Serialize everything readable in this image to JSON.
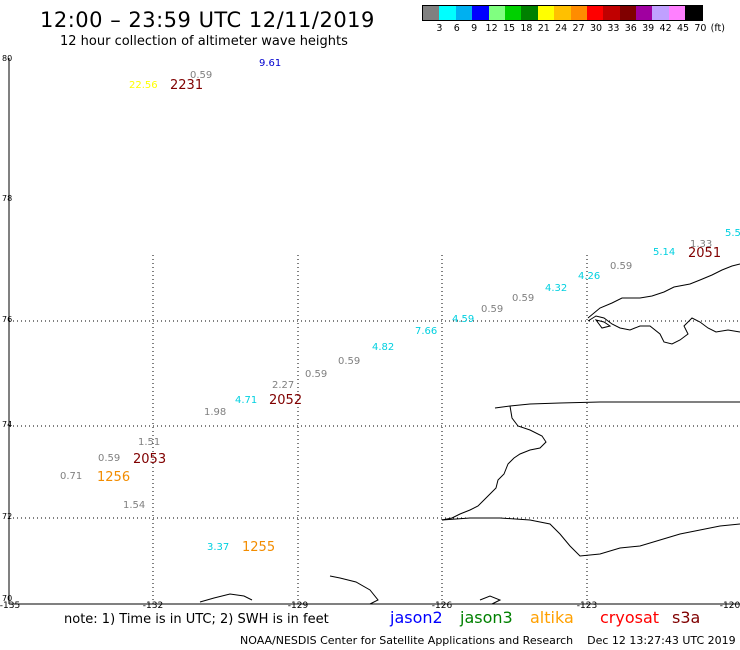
{
  "header": {
    "title": "12:00 – 23:59 UTC 12/11/2019",
    "subtitle": "12 hour collection of altimeter wave heights"
  },
  "legend": {
    "colors": [
      "#808080",
      "#00ffff",
      "#00b0f0",
      "#0000ff",
      "#80ff80",
      "#00d000",
      "#008000",
      "#ffff00",
      "#ffc000",
      "#ff8c00",
      "#ff0000",
      "#c00000",
      "#800000",
      "#a000a0",
      "#c0a0ff",
      "#ff80ff",
      "#000000"
    ],
    "labels": [
      "3",
      "6",
      "9",
      "12",
      "15",
      "18",
      "21",
      "24",
      "27",
      "30",
      "33",
      "36",
      "39",
      "42",
      "45",
      "70",
      "(ft)"
    ]
  },
  "axes": {
    "lat_labels": [
      "80",
      "78",
      "76",
      "74",
      "72",
      "70"
    ],
    "lon_labels": [
      "-135",
      "-132",
      "-129",
      "-126",
      "-123",
      "-120"
    ]
  },
  "observations": [
    {
      "text": "9.61",
      "color": "#0000d0"
    },
    {
      "text": "0.59",
      "color": "#808080"
    },
    {
      "text": "22.56",
      "color": "#ffff00"
    },
    {
      "text": "1.33",
      "color": "#808080"
    },
    {
      "text": "5.5",
      "color": "#00d0e0"
    },
    {
      "text": "5.14",
      "color": "#00d0e0"
    },
    {
      "text": "0.59",
      "color": "#808080"
    },
    {
      "text": "4.26",
      "color": "#00d0e0"
    },
    {
      "text": "4.32",
      "color": "#00d0e0"
    },
    {
      "text": "0.59",
      "color": "#808080"
    },
    {
      "text": "0.59",
      "color": "#808080"
    },
    {
      "text": "4.59",
      "color": "#00d0e0"
    },
    {
      "text": "7.66",
      "color": "#00d0e0"
    },
    {
      "text": "4.82",
      "color": "#00d0e0"
    },
    {
      "text": "0.59",
      "color": "#808080"
    },
    {
      "text": "0.59",
      "color": "#808080"
    },
    {
      "text": "2.27",
      "color": "#808080"
    },
    {
      "text": "4.71",
      "color": "#00d0e0"
    },
    {
      "text": "1.98",
      "color": "#808080"
    },
    {
      "text": "1.51",
      "color": "#808080"
    },
    {
      "text": "0.59",
      "color": "#808080"
    },
    {
      "text": "0.71",
      "color": "#808080"
    },
    {
      "text": "1.54",
      "color": "#808080"
    },
    {
      "text": "3.37",
      "color": "#00d0e0"
    }
  ],
  "passes": [
    {
      "text": "2231",
      "style": "maroon"
    },
    {
      "text": "2051",
      "style": "maroon"
    },
    {
      "text": "2052",
      "style": "maroon"
    },
    {
      "text": "2053",
      "style": "maroon"
    },
    {
      "text": "1256",
      "style": "orange"
    },
    {
      "text": "1255",
      "style": "orange"
    }
  ],
  "note": "note:  1) Time is in UTC;  2) SWH is in feet",
  "satellites": [
    {
      "name": "jason2",
      "color": "#0000ff"
    },
    {
      "name": "jason3",
      "color": "#008000"
    },
    {
      "name": "altika",
      "color": "#ffa000"
    },
    {
      "name": "cryosat",
      "color": "#ff0000"
    },
    {
      "name": "s3a",
      "color": "#800000"
    }
  ],
  "footer": {
    "credit": "NOAA/NESDIS Center for Satellite Applications and Research",
    "timestamp": "Dec 12 13:27:43 UTC 2019"
  }
}
